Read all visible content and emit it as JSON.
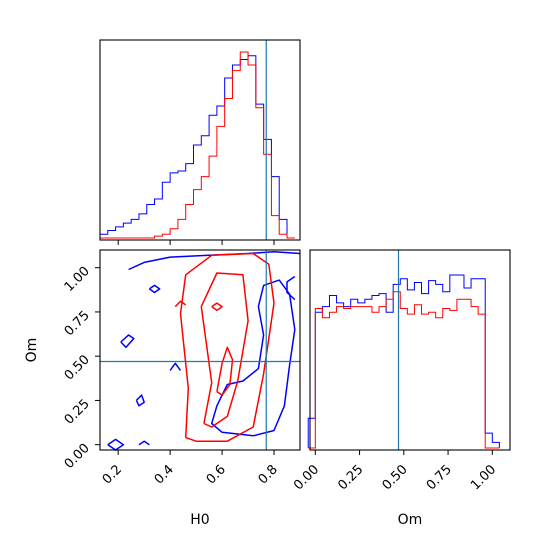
{
  "chart_data": [
    {
      "type": "histogram",
      "panel": "H0 marginal",
      "xlim": [
        0.13,
        0.9
      ],
      "bin_edges": [
        0.13,
        0.16,
        0.19,
        0.22,
        0.25,
        0.28,
        0.31,
        0.34,
        0.37,
        0.4,
        0.43,
        0.46,
        0.49,
        0.52,
        0.55,
        0.58,
        0.61,
        0.64,
        0.67,
        0.7,
        0.73,
        0.76,
        0.79,
        0.82,
        0.85,
        0.88
      ],
      "series": [
        {
          "color": "#0000ff",
          "values": [
            0.02,
            0.04,
            0.06,
            0.08,
            0.1,
            0.13,
            0.18,
            0.21,
            0.3,
            0.35,
            0.36,
            0.4,
            0.5,
            0.55,
            0.66,
            0.71,
            0.86,
            0.93,
            0.96,
            0.98,
            0.72,
            0.53,
            0.33,
            0.1,
            0.0
          ]
        },
        {
          "color": "#ff0000",
          "values": [
            0.0,
            0.0,
            0.0,
            0.0,
            0.0,
            0.0,
            0.0,
            0.01,
            0.02,
            0.05,
            0.1,
            0.18,
            0.26,
            0.33,
            0.44,
            0.6,
            0.75,
            0.9,
            1.0,
            0.93,
            0.7,
            0.45,
            0.12,
            0.02,
            0.0
          ]
        }
      ],
      "truth": 0.77
    },
    {
      "type": "contour",
      "panel": "H0 vs Om",
      "xlabel": "H0",
      "ylabel": "Om",
      "xlim": [
        0.13,
        0.9
      ],
      "ylim": [
        -0.03,
        1.1
      ],
      "xticks": [
        "0.2",
        "0.4",
        "0.6",
        "0.8"
      ],
      "yticks": [
        "0.00",
        "0.25",
        "0.50",
        "0.75",
        "1.00"
      ],
      "series": [
        {
          "color": "#0000ff",
          "contours": [
            [
              [
                0.24,
                0.99
              ],
              [
                0.3,
                1.03
              ],
              [
                0.4,
                1.06
              ],
              [
                0.55,
                1.07
              ],
              [
                0.7,
                1.08
              ],
              [
                0.8,
                1.09
              ],
              [
                0.9,
                1.08
              ]
            ],
            [
              [
                0.16,
                0.0
              ],
              [
                0.19,
                0.03
              ],
              [
                0.22,
                0.0
              ],
              [
                0.19,
                -0.03
              ],
              [
                0.16,
                0.0
              ]
            ],
            [
              [
                0.28,
                0.0
              ],
              [
                0.3,
                0.02
              ],
              [
                0.32,
                0.0
              ]
            ],
            [
              [
                0.32,
                0.88
              ],
              [
                0.34,
                0.9
              ],
              [
                0.36,
                0.88
              ],
              [
                0.34,
                0.86
              ],
              [
                0.32,
                0.88
              ]
            ],
            [
              [
                0.21,
                0.58
              ],
              [
                0.24,
                0.62
              ],
              [
                0.26,
                0.6
              ],
              [
                0.23,
                0.55
              ],
              [
                0.21,
                0.58
              ]
            ],
            [
              [
                0.27,
                0.25
              ],
              [
                0.29,
                0.28
              ],
              [
                0.3,
                0.24
              ],
              [
                0.28,
                0.22
              ],
              [
                0.27,
                0.25
              ]
            ],
            [
              [
                0.72,
                0.05
              ],
              [
                0.6,
                0.07
              ],
              [
                0.56,
                0.12
              ],
              [
                0.58,
                0.22
              ],
              [
                0.62,
                0.34
              ],
              [
                0.68,
                0.36
              ],
              [
                0.74,
                0.43
              ],
              [
                0.76,
                0.62
              ],
              [
                0.74,
                0.78
              ],
              [
                0.76,
                0.9
              ],
              [
                0.82,
                0.93
              ],
              [
                0.86,
                0.85
              ],
              [
                0.88,
                0.65
              ],
              [
                0.86,
                0.45
              ],
              [
                0.84,
                0.22
              ],
              [
                0.8,
                0.08
              ],
              [
                0.72,
                0.05
              ]
            ],
            [
              [
                0.4,
                0.42
              ],
              [
                0.42,
                0.46
              ],
              [
                0.44,
                0.42
              ]
            ],
            [
              [
                0.88,
                0.95
              ],
              [
                0.85,
                0.92
              ],
              [
                0.85,
                0.86
              ],
              [
                0.88,
                0.82
              ]
            ]
          ]
        },
        {
          "color": "#ff0000",
          "contours": [
            [
              [
                0.46,
                0.04
              ],
              [
                0.47,
                0.32
              ],
              [
                0.44,
                0.74
              ],
              [
                0.46,
                0.96
              ],
              [
                0.56,
                1.07
              ],
              [
                0.72,
                1.08
              ],
              [
                0.78,
                1.02
              ],
              [
                0.8,
                0.8
              ],
              [
                0.76,
                0.4
              ],
              [
                0.72,
                0.1
              ],
              [
                0.62,
                0.02
              ],
              [
                0.5,
                0.02
              ],
              [
                0.46,
                0.04
              ]
            ],
            [
              [
                0.53,
                0.12
              ],
              [
                0.56,
                0.35
              ],
              [
                0.52,
                0.78
              ],
              [
                0.58,
                0.97
              ],
              [
                0.68,
                0.96
              ],
              [
                0.7,
                0.7
              ],
              [
                0.66,
                0.36
              ],
              [
                0.62,
                0.16
              ],
              [
                0.56,
                0.1
              ],
              [
                0.53,
                0.12
              ]
            ],
            [
              [
                0.58,
                0.3
              ],
              [
                0.6,
                0.46
              ],
              [
                0.62,
                0.55
              ],
              [
                0.64,
                0.48
              ],
              [
                0.63,
                0.34
              ],
              [
                0.6,
                0.28
              ],
              [
                0.58,
                0.3
              ]
            ],
            [
              [
                0.56,
                0.78
              ],
              [
                0.58,
                0.8
              ],
              [
                0.6,
                0.78
              ],
              [
                0.58,
                0.76
              ],
              [
                0.56,
                0.78
              ]
            ],
            [
              [
                0.42,
                0.78
              ],
              [
                0.44,
                0.81
              ],
              [
                0.46,
                0.79
              ]
            ]
          ]
        }
      ],
      "truth": {
        "x": 0.77,
        "y": 0.47
      }
    },
    {
      "type": "histogram",
      "panel": "Om marginal",
      "xlabel": "Om",
      "xlim": [
        -0.03,
        1.1
      ],
      "xticks": [
        "0.00",
        "0.25",
        "0.50",
        "0.75",
        "1.00"
      ],
      "bin_edges": [
        -0.04,
        0.0,
        0.04,
        0.08,
        0.12,
        0.16,
        0.2,
        0.24,
        0.28,
        0.32,
        0.36,
        0.4,
        0.44,
        0.48,
        0.52,
        0.56,
        0.6,
        0.64,
        0.68,
        0.72,
        0.76,
        0.8,
        0.84,
        0.88,
        0.92,
        0.96,
        1.0,
        1.04
      ],
      "series": [
        {
          "color": "#0000ff",
          "values": [
            0.16,
            0.73,
            0.76,
            0.82,
            0.78,
            0.76,
            0.8,
            0.78,
            0.8,
            0.82,
            0.83,
            0.73,
            0.88,
            0.91,
            0.85,
            0.89,
            0.83,
            0.9,
            0.88,
            0.84,
            0.93,
            0.93,
            0.86,
            0.91,
            0.91,
            0.08,
            0.03
          ]
        },
        {
          "color": "#ff0000",
          "values": [
            0.0,
            0.75,
            0.7,
            0.73,
            0.76,
            0.75,
            0.76,
            0.76,
            0.76,
            0.73,
            0.76,
            0.8,
            0.84,
            0.75,
            0.72,
            0.77,
            0.72,
            0.73,
            0.7,
            0.75,
            0.74,
            0.8,
            0.8,
            0.76,
            0.72,
            0.0,
            0.0
          ]
        }
      ],
      "ylim": [
        0,
        1.0
      ],
      "truth": 0.47
    }
  ]
}
